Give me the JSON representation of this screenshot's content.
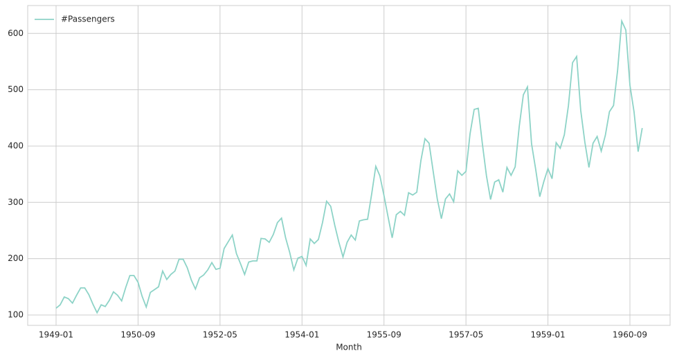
{
  "chart_data": {
    "type": "line",
    "x_label": "Month",
    "categories": [
      "1949-01",
      null,
      null,
      null,
      null,
      null,
      null,
      null,
      null,
      null,
      null,
      null,
      null,
      null,
      null,
      null,
      null,
      null,
      null,
      null,
      "1950-09",
      null,
      null,
      null,
      null,
      null,
      null,
      null,
      null,
      null,
      null,
      null,
      null,
      null,
      null,
      null,
      null,
      null,
      null,
      null,
      "1952-05",
      null,
      null,
      null,
      null,
      null,
      null,
      null,
      null,
      null,
      null,
      null,
      null,
      null,
      null,
      null,
      null,
      null,
      null,
      null,
      "1954-01",
      null,
      null,
      null,
      null,
      null,
      null,
      null,
      null,
      null,
      null,
      null,
      null,
      null,
      null,
      null,
      null,
      null,
      null,
      null,
      "1955-09",
      null,
      null,
      null,
      null,
      null,
      null,
      null,
      null,
      null,
      null,
      null,
      null,
      null,
      null,
      null,
      null,
      null,
      null,
      null,
      "1957-05",
      null,
      null,
      null,
      null,
      null,
      null,
      null,
      null,
      null,
      null,
      null,
      null,
      null,
      null,
      null,
      null,
      null,
      null,
      null,
      "1959-01",
      null,
      null,
      null,
      null,
      null,
      null,
      null,
      null,
      null,
      null,
      null,
      null,
      null,
      null,
      null,
      null,
      null,
      null,
      null,
      "1960-09",
      null,
      null,
      null
    ],
    "series": [
      {
        "name": "#Passengers",
        "color": "#8dd3c7",
        "values": [
          112,
          118,
          132,
          129,
          121,
          135,
          148,
          148,
          136,
          119,
          104,
          118,
          115,
          126,
          141,
          135,
          125,
          149,
          170,
          170,
          158,
          133,
          114,
          140,
          145,
          150,
          178,
          163,
          172,
          178,
          199,
          199,
          184,
          162,
          146,
          166,
          171,
          180,
          193,
          181,
          183,
          218,
          230,
          242,
          209,
          191,
          172,
          194,
          196,
          196,
          236,
          235,
          229,
          243,
          264,
          272,
          237,
          211,
          180,
          201,
          204,
          188,
          235,
          227,
          234,
          264,
          302,
          293,
          259,
          229,
          203,
          229,
          242,
          233,
          267,
          269,
          270,
          315,
          364,
          347,
          312,
          274,
          237,
          278,
          284,
          277,
          317,
          313,
          318,
          374,
          413,
          405,
          355,
          306,
          271,
          306,
          315,
          301,
          356,
          348,
          355,
          422,
          465,
          467,
          404,
          347,
          305,
          336,
          340,
          318,
          362,
          348,
          363,
          435,
          491,
          505,
          404,
          359,
          310,
          337,
          360,
          342,
          406,
          396,
          420,
          472,
          548,
          559,
          463,
          407,
          362,
          405,
          417,
          391,
          419,
          461,
          472,
          535,
          622,
          606,
          508,
          461,
          390,
          432
        ]
      }
    ],
    "ylim": [
      81.5,
      649.5
    ],
    "yticks": [
      100,
      200,
      300,
      400,
      500,
      600
    ],
    "grid": true,
    "legend": "upper left"
  }
}
